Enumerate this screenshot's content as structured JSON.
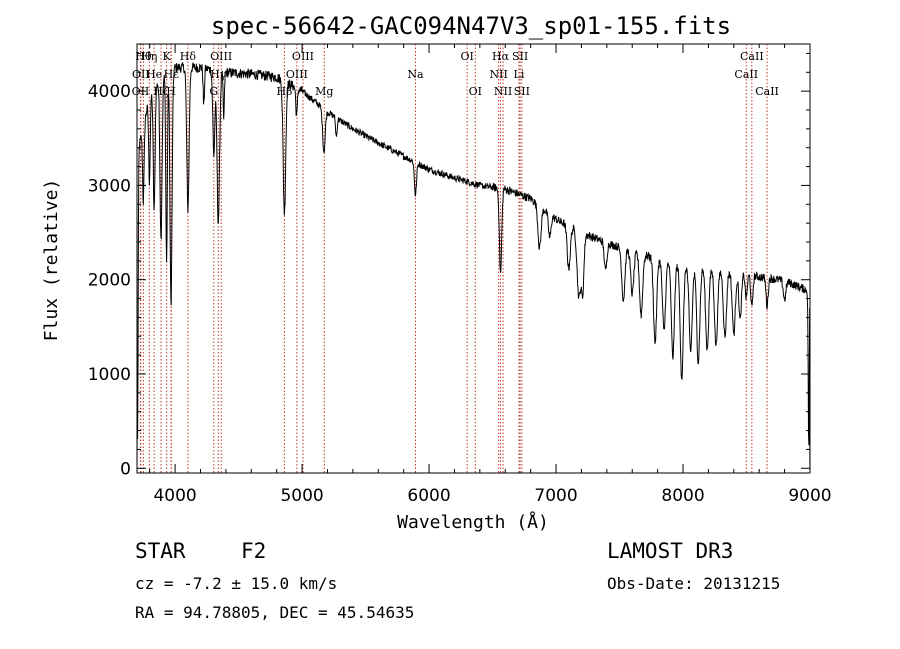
{
  "chart_data": {
    "type": "line",
    "title": "spec-56642-GAC094N47V3_sp01-155.fits",
    "xlabel": "Wavelength (Å)",
    "ylabel": "Flux (relative)",
    "xlim": [
      3700,
      9000
    ],
    "ylim": [
      -50,
      4500
    ],
    "xticks": [
      4000,
      5000,
      6000,
      7000,
      8000,
      9000
    ],
    "yticks": [
      0,
      1000,
      2000,
      3000,
      4000
    ],
    "continuum": [
      [
        3700,
        3300
      ],
      [
        3800,
        3950
      ],
      [
        3900,
        4150
      ],
      [
        4000,
        4250
      ],
      [
        4200,
        4250
      ],
      [
        4400,
        4200
      ],
      [
        4600,
        4180
      ],
      [
        4800,
        4150
      ],
      [
        5000,
        4000
      ],
      [
        5200,
        3780
      ],
      [
        5400,
        3600
      ],
      [
        5600,
        3450
      ],
      [
        5800,
        3310
      ],
      [
        6000,
        3170
      ],
      [
        6200,
        3080
      ],
      [
        6400,
        3000
      ],
      [
        6600,
        2960
      ],
      [
        6800,
        2860
      ],
      [
        7000,
        2640
      ],
      [
        7200,
        2500
      ],
      [
        7400,
        2390
      ],
      [
        7600,
        2300
      ],
      [
        7800,
        2220
      ],
      [
        8000,
        2150
      ],
      [
        8200,
        2110
      ],
      [
        8400,
        2080
      ],
      [
        8600,
        2030
      ],
      [
        8800,
        1990
      ],
      [
        8990,
        1880
      ]
    ],
    "absorption_features": [
      {
        "x": 3705,
        "depth": 3000,
        "width": 4
      },
      {
        "x": 3750,
        "depth": 800,
        "width": 6
      },
      {
        "x": 3798,
        "depth": 900,
        "width": 6
      },
      {
        "x": 3835,
        "depth": 1300,
        "width": 7
      },
      {
        "x": 3889,
        "depth": 1700,
        "width": 8
      },
      {
        "x": 3933,
        "depth": 2000,
        "width": 6
      },
      {
        "x": 3968,
        "depth": 2500,
        "width": 8
      },
      {
        "x": 4101,
        "depth": 1500,
        "width": 9
      },
      {
        "x": 4226,
        "depth": 400,
        "width": 5
      },
      {
        "x": 4305,
        "depth": 900,
        "width": 8
      },
      {
        "x": 4340,
        "depth": 1600,
        "width": 10
      },
      {
        "x": 4383,
        "depth": 500,
        "width": 5
      },
      {
        "x": 4861,
        "depth": 1400,
        "width": 10
      },
      {
        "x": 4957,
        "depth": 300,
        "width": 6
      },
      {
        "x": 5172,
        "depth": 450,
        "width": 10
      },
      {
        "x": 5270,
        "depth": 200,
        "width": 6
      },
      {
        "x": 5893,
        "depth": 350,
        "width": 8
      },
      {
        "x": 6563,
        "depth": 900,
        "width": 9
      },
      {
        "x": 6870,
        "depth": 450,
        "width": 12
      },
      {
        "x": 6950,
        "depth": 250,
        "width": 10
      },
      {
        "x": 7100,
        "depth": 450,
        "width": 12
      },
      {
        "x": 7180,
        "depth": 700,
        "width": 14
      },
      {
        "x": 7210,
        "depth": 600,
        "width": 10
      },
      {
        "x": 7390,
        "depth": 300,
        "width": 10
      },
      {
        "x": 7530,
        "depth": 550,
        "width": 12
      },
      {
        "x": 7600,
        "depth": 450,
        "width": 12
      },
      {
        "x": 7670,
        "depth": 650,
        "width": 12
      },
      {
        "x": 7780,
        "depth": 900,
        "width": 12
      },
      {
        "x": 7850,
        "depth": 750,
        "width": 12
      },
      {
        "x": 7920,
        "depth": 1000,
        "width": 12
      },
      {
        "x": 7990,
        "depth": 1200,
        "width": 12
      },
      {
        "x": 8060,
        "depth": 900,
        "width": 12
      },
      {
        "x": 8120,
        "depth": 1000,
        "width": 12
      },
      {
        "x": 8190,
        "depth": 850,
        "width": 12
      },
      {
        "x": 8260,
        "depth": 800,
        "width": 12
      },
      {
        "x": 8330,
        "depth": 700,
        "width": 12
      },
      {
        "x": 8400,
        "depth": 650,
        "width": 12
      },
      {
        "x": 8450,
        "depth": 500,
        "width": 10
      },
      {
        "x": 8498,
        "depth": 250,
        "width": 8
      },
      {
        "x": 8542,
        "depth": 350,
        "width": 8
      },
      {
        "x": 8662,
        "depth": 300,
        "width": 8
      },
      {
        "x": 8800,
        "depth": 200,
        "width": 10
      },
      {
        "x": 8990,
        "depth": 1700,
        "width": 4
      }
    ],
    "reference_lines": [
      {
        "x": 3727,
        "label": "OII",
        "row": 2
      },
      {
        "x": 3730,
        "label": "OII",
        "row": 1
      },
      {
        "x": 3750,
        "label": "Hθ",
        "row": 0
      },
      {
        "x": 3797,
        "label": "Hη",
        "row": 0
      },
      {
        "x": 3835,
        "label": "He",
        "row": 1
      },
      {
        "x": 3889,
        "label": "Hζ",
        "row": 2
      },
      {
        "x": 3933,
        "label": "K",
        "row": 0
      },
      {
        "x": 3968,
        "label": "H",
        "row": 2
      },
      {
        "x": 3970,
        "label": "Hε",
        "row": 1
      },
      {
        "x": 4101,
        "label": "Hδ",
        "row": 0
      },
      {
        "x": 4305,
        "label": "G",
        "row": 2
      },
      {
        "x": 4340,
        "label": "Hγ",
        "row": 1
      },
      {
        "x": 4363,
        "label": "OIII",
        "row": 0
      },
      {
        "x": 4861,
        "label": "Hβ",
        "row": 2
      },
      {
        "x": 4959,
        "label": "OIII",
        "row": 1
      },
      {
        "x": 5007,
        "label": "OIII",
        "row": 0
      },
      {
        "x": 5175,
        "label": "Mg",
        "row": 2
      },
      {
        "x": 5893,
        "label": "Na",
        "row": 1
      },
      {
        "x": 6300,
        "label": "OI",
        "row": 0
      },
      {
        "x": 6364,
        "label": "OI",
        "row": 2
      },
      {
        "x": 6548,
        "label": "NII",
        "row": 1
      },
      {
        "x": 6563,
        "label": "Hα",
        "row": 0
      },
      {
        "x": 6583,
        "label": "NII",
        "row": 2
      },
      {
        "x": 6708,
        "label": "Li",
        "row": 1
      },
      {
        "x": 6717,
        "label": "SII",
        "row": 0
      },
      {
        "x": 6731,
        "label": "SII",
        "row": 2
      },
      {
        "x": 8498,
        "label": "CaII",
        "row": 1
      },
      {
        "x": 8542,
        "label": "CaII",
        "row": 0
      },
      {
        "x": 8662,
        "label": "CaII",
        "row": 2
      }
    ]
  },
  "info": {
    "object_class": "STAR",
    "subclass": "F2",
    "redshift": "cz = -7.2 ± 15.0 km/s",
    "coords": "RA =  94.78805, DEC =  45.54635",
    "survey": "LAMOST DR3",
    "obs_date": "Obs-Date: 20131215"
  }
}
